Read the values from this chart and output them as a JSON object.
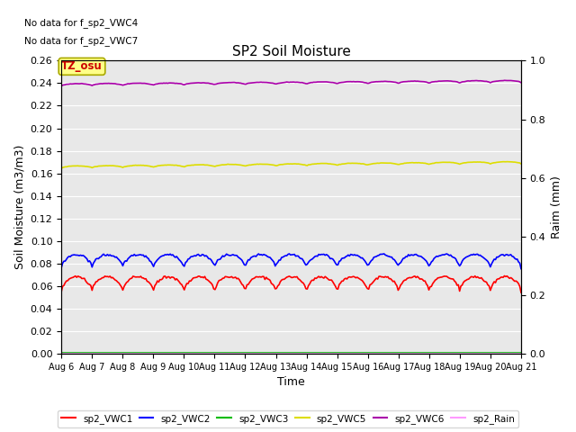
{
  "title": "SP2 Soil Moisture",
  "xlabel": "Time",
  "ylabel_left": "Soil Moisture (m3/m3)",
  "ylabel_right": "Raim (mm)",
  "ylim_left": [
    0.0,
    0.26
  ],
  "ylim_right": [
    0.0,
    1.0
  ],
  "yticks_left": [
    0.0,
    0.02,
    0.04,
    0.06,
    0.08,
    0.1,
    0.12,
    0.14,
    0.16,
    0.18,
    0.2,
    0.22,
    0.24,
    0.26
  ],
  "yticks_right": [
    0.0,
    0.2,
    0.4,
    0.6,
    0.8,
    1.0
  ],
  "n_days": 15,
  "n_points": 360,
  "lines": {
    "sp2_VWC1": {
      "color": "#ff0000",
      "base": 0.065,
      "amplitude": 0.007,
      "trend": 0.0,
      "linewidth": 1.2
    },
    "sp2_VWC2": {
      "color": "#0000ff",
      "base": 0.085,
      "amplitude": 0.006,
      "trend": 0.0,
      "linewidth": 1.2
    },
    "sp2_VWC3": {
      "color": "#00bb00",
      "base": 0.0005,
      "amplitude": 0.0,
      "trend": 0.0,
      "linewidth": 1.2
    },
    "sp2_VWC5": {
      "color": "#dddd00",
      "base": 0.166,
      "amplitude": 0.001,
      "trend": 0.004,
      "linewidth": 1.2
    },
    "sp2_VWC6": {
      "color": "#aa00aa",
      "base": 0.239,
      "amplitude": 0.001,
      "trend": 0.003,
      "linewidth": 1.2
    },
    "sp2_Rain": {
      "color": "#ff99ff",
      "base": 0.0003,
      "amplitude": 0.0,
      "trend": 0.0,
      "linewidth": 1.2
    }
  },
  "no_data_texts": [
    "No data for f_sp2_VWC4",
    "No data for f_sp2_VWC7"
  ],
  "tz_label": "TZ_osu",
  "tz_bg_color": "#ffff88",
  "tz_text_color": "#cc0000",
  "bg_color": "#e8e8e8",
  "grid_color": "#ffffff",
  "legend_labels": [
    "sp2_VWC1",
    "sp2_VWC2",
    "sp2_VWC3",
    "sp2_VWC5",
    "sp2_VWC6",
    "sp2_Rain"
  ],
  "legend_colors": [
    "#ff0000",
    "#0000ff",
    "#00bb00",
    "#dddd00",
    "#aa00aa",
    "#ff99ff"
  ],
  "xtick_labels": [
    "Aug 6",
    "Aug 7",
    "Aug 8",
    "Aug 9",
    "Aug 10",
    "Aug 11",
    "Aug 12",
    "Aug 13",
    "Aug 14",
    "Aug 15",
    "Aug 16",
    "Aug 17",
    "Aug 18",
    "Aug 19",
    "Aug 20",
    "Aug 21"
  ],
  "figsize": [
    6.4,
    4.8
  ],
  "dpi": 100
}
